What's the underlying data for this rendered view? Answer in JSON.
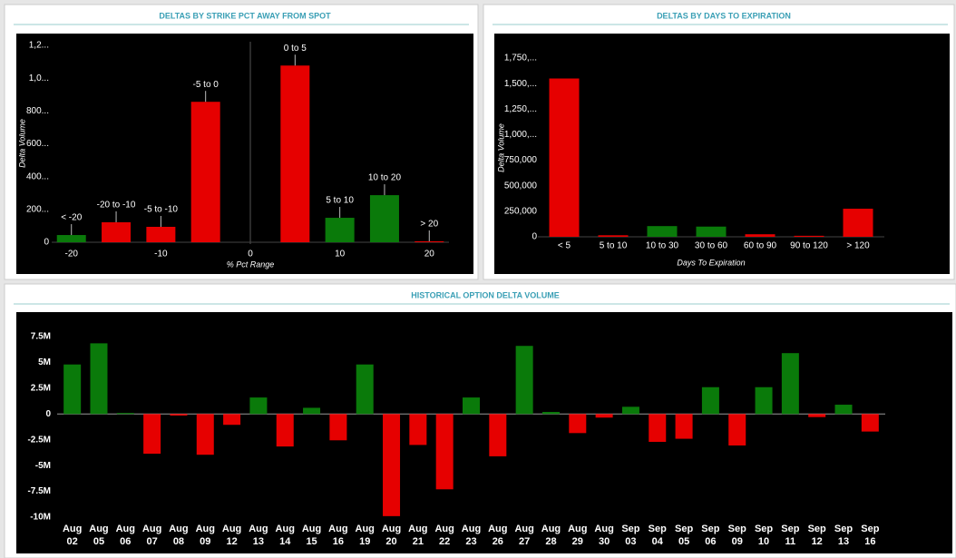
{
  "chart_data": [
    {
      "type": "bar",
      "title": "DELTAS BY STRIKE PCT AWAY FROM SPOT",
      "x_label": "% Pct Range",
      "y_label": "Delta Volume",
      "x": [
        -20,
        -15,
        -10,
        -5,
        5,
        10,
        15,
        20
      ],
      "value_labels": [
        "< -20",
        "-20 to -10",
        "-5 to -10",
        "-5 to 0",
        "0 to 5",
        "5 to 10",
        "10 to 20",
        "> 20"
      ],
      "values": [
        44,
        122,
        94,
        856,
        1077,
        149,
        287,
        6
      ],
      "colors": [
        "#0a7a0a",
        "#e60000",
        "#e60000",
        "#e60000",
        "#e60000",
        "#0a7a0a",
        "#0a7a0a",
        "#e60000"
      ],
      "xlim": [
        -22,
        22
      ],
      "xticks": [
        -20,
        -10,
        0,
        10,
        20
      ],
      "ylim": [
        0,
        1200
      ],
      "yticks": [
        0,
        {
          "value": 200,
          "label": "200..."
        },
        {
          "value": 400,
          "label": "400..."
        },
        {
          "value": 600,
          "label": "600..."
        },
        {
          "value": 800,
          "label": "800..."
        },
        {
          "value": 1000,
          "label": "1,0..."
        },
        {
          "value": 1200,
          "label": "1,2..."
        }
      ]
    },
    {
      "type": "bar",
      "title": "DELTAS BY DAYS TO EXPIRATION",
      "x_label": "Days To Expiration",
      "y_label": "Delta Volume",
      "categories": [
        "< 5",
        "5 to 10",
        "10 to 30",
        "30 to 60",
        "60 to 90",
        "90 to 120",
        "> 120"
      ],
      "values": [
        1550000,
        15000,
        105000,
        100000,
        25000,
        10000,
        275000
      ],
      "colors": [
        "#e60000",
        "#e60000",
        "#0a7a0a",
        "#0a7a0a",
        "#e60000",
        "#e60000",
        "#e60000"
      ],
      "ylim": [
        0,
        1750000
      ],
      "yticks": [
        0,
        {
          "value": 250000,
          "label": "250,000"
        },
        {
          "value": 500000,
          "label": "500,000"
        },
        {
          "value": 750000,
          "label": "750,000"
        },
        {
          "value": 1000000,
          "label": "1,000,..."
        },
        {
          "value": 1250000,
          "label": "1,250,..."
        },
        {
          "value": 1500000,
          "label": "1,500,..."
        },
        {
          "value": 1750000,
          "label": "1,750,..."
        }
      ]
    },
    {
      "type": "bar",
      "title": "HISTORICAL OPTION DELTA VOLUME",
      "categories": [
        "Aug 02",
        "Aug 05",
        "Aug 06",
        "Aug 07",
        "Aug 08",
        "Aug 09",
        "Aug 12",
        "Aug 13",
        "Aug 14",
        "Aug 15",
        "Aug 16",
        "Aug 19",
        "Aug 20",
        "Aug 21",
        "Aug 22",
        "Aug 23",
        "Aug 26",
        "Aug 27",
        "Aug 28",
        "Aug 29",
        "Aug 30",
        "Sep 03",
        "Sep 04",
        "Sep 05",
        "Sep 06",
        "Sep 09",
        "Sep 10",
        "Sep 11",
        "Sep 12",
        "Sep 13",
        "Sep 16"
      ],
      "values": [
        4800000,
        6850000,
        100000,
        -3850000,
        -150000,
        -3950000,
        -1050000,
        1600000,
        -3150000,
        600000,
        -2550000,
        4800000,
        -9900000,
        -3000000,
        -7300000,
        1600000,
        -4100000,
        6600000,
        200000,
        -1850000,
        -350000,
        700000,
        -2700000,
        -2400000,
        2600000,
        -3050000,
        2600000,
        5900000,
        -300000,
        900000,
        -1700000
      ],
      "positive_color": "#0a7a0a",
      "negative_color": "#e60000",
      "ylim": [
        -10000000,
        7500000
      ],
      "yticks": [
        {
          "value": 7500000,
          "label": "7.5M"
        },
        {
          "value": 5000000,
          "label": "5M"
        },
        {
          "value": 2500000,
          "label": "2.5M"
        },
        0,
        {
          "value": -2500000,
          "label": "-2.5M"
        },
        {
          "value": -5000000,
          "label": "-5M"
        },
        {
          "value": -7500000,
          "label": "-7.5M"
        },
        {
          "value": -10000000,
          "label": "-10M"
        }
      ]
    }
  ]
}
